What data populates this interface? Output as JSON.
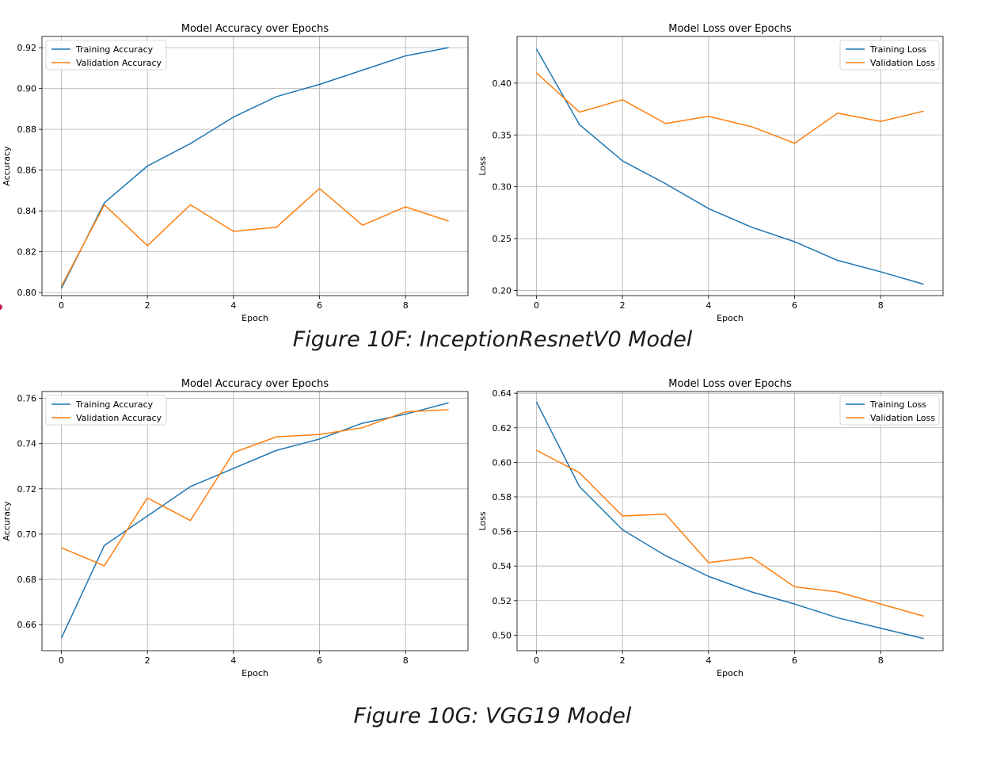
{
  "figures": [
    {
      "caption": "Figure 10F: InceptionResnetV0 Model",
      "charts": [
        {
          "title": "Model Accuracy over Epochs",
          "xlabel": "Epoch",
          "ylabel": "Accuracy",
          "legend_location": "upper-left",
          "series_names": [
            "Training Accuracy",
            "Validation Accuracy"
          ],
          "x_ticks": [
            "0",
            "2",
            "4",
            "6",
            "8"
          ],
          "y_ticks": [
            "0.80",
            "0.82",
            "0.84",
            "0.86",
            "0.88",
            "0.90",
            "0.92"
          ]
        },
        {
          "title": "Model Loss over Epochs",
          "xlabel": "Epoch",
          "ylabel": "Loss",
          "legend_location": "upper-right",
          "series_names": [
            "Training Loss",
            "Validation Loss"
          ],
          "x_ticks": [
            "0",
            "2",
            "4",
            "6",
            "8"
          ],
          "y_ticks": [
            "0.20",
            "0.25",
            "0.30",
            "0.35",
            "0.40"
          ]
        }
      ]
    },
    {
      "caption": "Figure 10G: VGG19 Model",
      "charts": [
        {
          "title": "Model Accuracy over Epochs",
          "xlabel": "Epoch",
          "ylabel": "Accuracy",
          "legend_location": "upper-left",
          "series_names": [
            "Training Accuracy",
            "Validation Accuracy"
          ],
          "x_ticks": [
            "0",
            "2",
            "4",
            "6",
            "8"
          ],
          "y_ticks": [
            "0.66",
            "0.68",
            "0.70",
            "0.72",
            "0.74",
            "0.76"
          ]
        },
        {
          "title": "Model Loss over Epochs",
          "xlabel": "Epoch",
          "ylabel": "Loss",
          "legend_location": "upper-right",
          "series_names": [
            "Training Loss",
            "Validation Loss"
          ],
          "x_ticks": [
            "0",
            "2",
            "4",
            "6",
            "8"
          ],
          "y_ticks": [
            "0.50",
            "0.52",
            "0.54",
            "0.56",
            "0.58",
            "0.60",
            "0.62",
            "0.64"
          ]
        }
      ]
    }
  ],
  "colors": {
    "training": "#1f77b4",
    "validation": "#ff7f0e",
    "grid": "#b0b0b0",
    "axes": "#000000",
    "edge_mark": "#c2185b"
  },
  "chart_data": [
    {
      "type": "line",
      "title": "Model Accuracy over Epochs",
      "xlabel": "Epoch",
      "ylabel": "Accuracy",
      "x": [
        0,
        1,
        2,
        3,
        4,
        5,
        6,
        7,
        8,
        9
      ],
      "series": [
        {
          "name": "Training Accuracy",
          "values": [
            0.802,
            0.844,
            0.862,
            0.873,
            0.886,
            0.896,
            0.902,
            0.909,
            0.916,
            0.92
          ]
        },
        {
          "name": "Validation Accuracy",
          "values": [
            0.803,
            0.843,
            0.823,
            0.843,
            0.83,
            0.832,
            0.851,
            0.833,
            0.842,
            0.835
          ]
        }
      ],
      "xlim": [
        -0.45,
        9.45
      ],
      "ylim": [
        0.7985,
        0.9255
      ],
      "grid": true,
      "legend": "upper-left"
    },
    {
      "type": "line",
      "title": "Model Loss over Epochs",
      "xlabel": "Epoch",
      "ylabel": "Loss",
      "x": [
        0,
        1,
        2,
        3,
        4,
        5,
        6,
        7,
        8,
        9
      ],
      "series": [
        {
          "name": "Training Loss",
          "values": [
            0.433,
            0.36,
            0.325,
            0.303,
            0.279,
            0.261,
            0.247,
            0.229,
            0.218,
            0.206
          ]
        },
        {
          "name": "Validation Loss",
          "values": [
            0.41,
            0.372,
            0.384,
            0.361,
            0.368,
            0.358,
            0.342,
            0.371,
            0.363,
            0.373
          ]
        }
      ],
      "xlim": [
        -0.45,
        9.45
      ],
      "ylim": [
        0.195,
        0.445
      ],
      "grid": true,
      "legend": "upper-right"
    },
    {
      "type": "line",
      "title": "Model Accuracy over Epochs",
      "xlabel": "Epoch",
      "ylabel": "Accuracy",
      "x": [
        0,
        1,
        2,
        3,
        4,
        5,
        6,
        7,
        8,
        9
      ],
      "series": [
        {
          "name": "Training Accuracy",
          "values": [
            0.654,
            0.695,
            0.708,
            0.721,
            0.729,
            0.737,
            0.742,
            0.749,
            0.753,
            0.758
          ]
        },
        {
          "name": "Validation Accuracy",
          "values": [
            0.694,
            0.686,
            0.716,
            0.706,
            0.736,
            0.743,
            0.744,
            0.747,
            0.754,
            0.755
          ]
        }
      ],
      "xlim": [
        -0.45,
        9.45
      ],
      "ylim": [
        0.6485,
        0.763
      ],
      "grid": true,
      "legend": "upper-left"
    },
    {
      "type": "line",
      "title": "Model Loss over Epochs",
      "xlabel": "Epoch",
      "ylabel": "Loss",
      "x": [
        0,
        1,
        2,
        3,
        4,
        5,
        6,
        7,
        8,
        9
      ],
      "series": [
        {
          "name": "Training Loss",
          "values": [
            0.635,
            0.586,
            0.561,
            0.546,
            0.534,
            0.525,
            0.518,
            0.51,
            0.504,
            0.498
          ]
        },
        {
          "name": "Validation Loss",
          "values": [
            0.607,
            0.594,
            0.569,
            0.57,
            0.542,
            0.545,
            0.528,
            0.525,
            0.518,
            0.511
          ]
        }
      ],
      "xlim": [
        -0.45,
        9.45
      ],
      "ylim": [
        0.491,
        0.641
      ],
      "grid": true,
      "legend": "upper-right"
    }
  ]
}
